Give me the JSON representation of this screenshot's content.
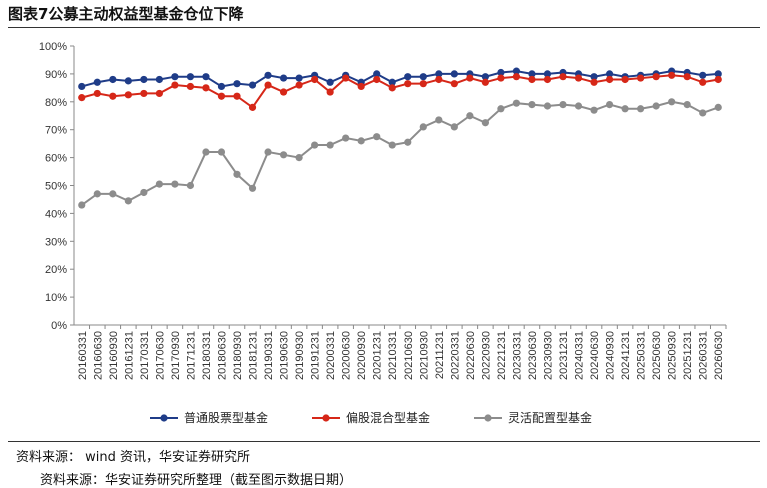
{
  "header": {
    "title": "图表7公募主动权益型基金仓位下降"
  },
  "footer": {
    "source": "资料来源： wind 资讯，华安证券研究所",
    "cutoff_text": "资料来源：华安证券研究所整理（截至图示数据日期）"
  },
  "chart_data": {
    "type": "line",
    "title": "",
    "xlabel": "",
    "ylabel": "",
    "ylim": [
      0,
      100
    ],
    "yticks": [
      "0%",
      "10%",
      "20%",
      "30%",
      "40%",
      "50%",
      "60%",
      "70%",
      "80%",
      "90%",
      "100%"
    ],
    "legend_position": "bottom",
    "grid": false,
    "categories": [
      "20160331",
      "20160630",
      "20160930",
      "20161231",
      "20170331",
      "20170630",
      "20170930",
      "20171231",
      "20180331",
      "20180630",
      "20180930",
      "20181231",
      "20190331",
      "20190630",
      "20190930",
      "20191231",
      "20200331",
      "20200630",
      "20200930",
      "20201231",
      "20210331",
      "20210630",
      "20210930",
      "20211231",
      "20220331",
      "20220630",
      "20220930",
      "20221231",
      "20230331",
      "20230630",
      "20230930",
      "20231231",
      "20240331",
      "20240630",
      "20240930",
      "20241231",
      "20250331",
      "20250630",
      "20250930",
      "20251231",
      "20260331",
      "20260630"
    ],
    "series": [
      {
        "name": "普通股票型基金",
        "color": "#1f3c88",
        "values": [
          85.5,
          87,
          88,
          87.5,
          88,
          88,
          89,
          89,
          89,
          85.5,
          86.5,
          86,
          89.5,
          88.5,
          88.5,
          89.5,
          87,
          89.5,
          87,
          90,
          87,
          89,
          89,
          90,
          90,
          90,
          89,
          90.5,
          91,
          90,
          90,
          90.5,
          90,
          89,
          90,
          89,
          89.5,
          90,
          91,
          90.5,
          89.5,
          90
        ]
      },
      {
        "name": "偏股混合型基金",
        "color": "#d62718",
        "values": [
          81.5,
          83,
          82,
          82.5,
          83,
          83,
          86,
          85.5,
          85,
          82,
          82,
          78,
          86,
          83.5,
          86,
          88,
          83.5,
          88.5,
          85.5,
          88,
          85,
          86.5,
          86.5,
          88,
          86.5,
          88.5,
          87,
          88.5,
          89,
          88,
          88,
          89,
          88.5,
          87,
          88,
          88,
          88.5,
          89,
          89.5,
          89,
          87,
          88
        ]
      },
      {
        "name": "灵活配置型基金",
        "color": "#8c8c8c",
        "values": [
          43,
          47,
          47,
          44.5,
          47.5,
          50.5,
          50.5,
          50,
          62,
          62,
          54,
          49,
          62,
          61,
          60,
          64.5,
          64.5,
          67,
          66,
          67.5,
          64.5,
          65.5,
          71,
          73.5,
          71,
          75,
          72.5,
          77.5,
          79.5,
          79,
          78.5,
          79,
          78.5,
          77,
          79,
          77.5,
          77.5,
          78.5,
          80,
          79,
          76,
          78
        ]
      }
    ]
  }
}
